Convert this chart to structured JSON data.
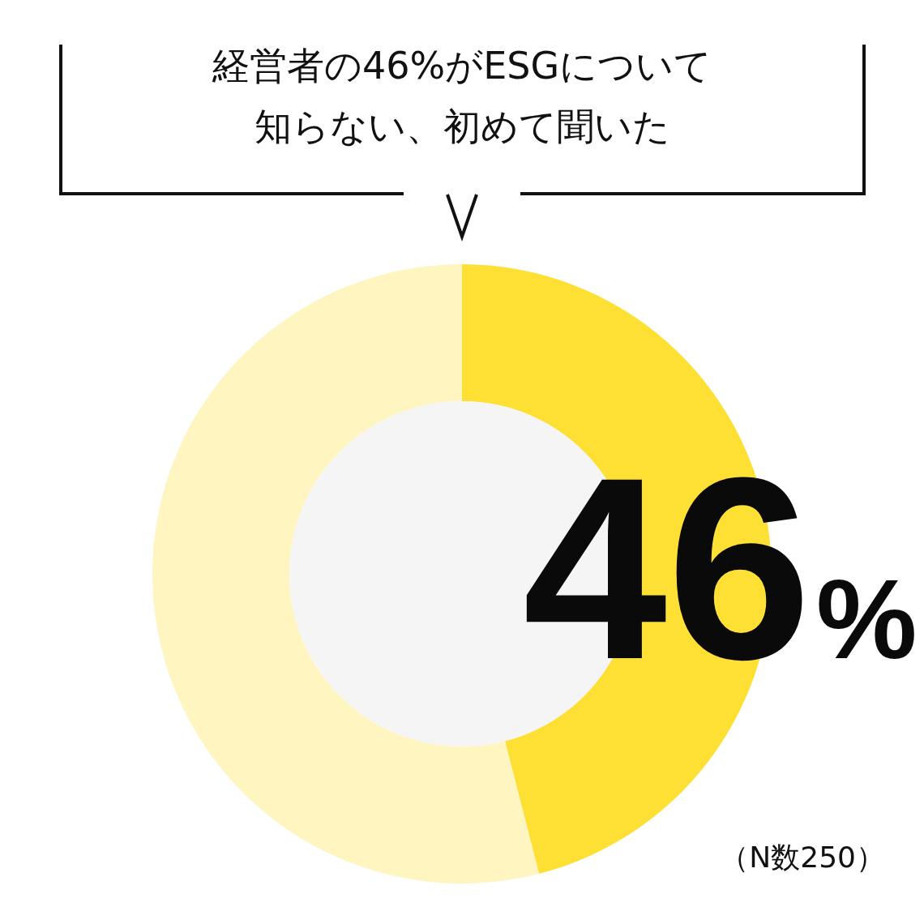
{
  "chart_data": {
    "type": "donut",
    "title": "経営者の46%がESGについて知らない、初めて聞いた",
    "categories": [
      null,
      null
    ],
    "values": [
      46,
      54
    ],
    "colors": [
      "#fee034",
      "#fef5c1"
    ],
    "value_labels": [
      "46%",
      null
    ],
    "annotations": [
      "（N数250）"
    ]
  }
}
